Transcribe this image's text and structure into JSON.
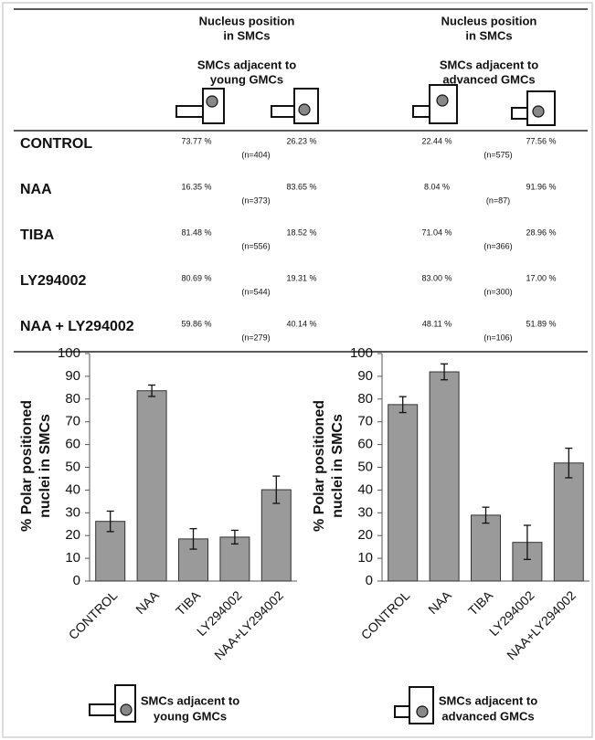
{
  "table": {
    "groups": [
      {
        "heading": [
          "Nucleus position",
          "in SMCs"
        ],
        "subheading": [
          "SMCs adjacent to",
          "young GMCs"
        ]
      },
      {
        "heading": [
          "Nucleus position",
          "in SMCs"
        ],
        "subheading": [
          "SMCs adjacent to",
          "advanced GMCs"
        ]
      }
    ],
    "rows": [
      {
        "label": "CONTROL",
        "cells": [
          "73.77 %",
          "(n=404)",
          "26.23 %",
          "22.44 %",
          "(n=575)",
          "77.56 %"
        ]
      },
      {
        "label": "NAA",
        "cells": [
          "16.35 %",
          "(n=373)",
          "83.65 %",
          "8.04 %",
          "(n=87)",
          "91.96 %"
        ]
      },
      {
        "label": "TIBA",
        "cells": [
          "81.48 %",
          "(n=556)",
          "18.52 %",
          "71.04 %",
          "(n=366)",
          "28.96 %"
        ]
      },
      {
        "label": "LY294002",
        "cells": [
          "80.69 %",
          "(n=544)",
          "19.31 %",
          "83.00 %",
          "(n=300)",
          "17.00 %"
        ]
      },
      {
        "label": "NAA + LY294002",
        "cells": [
          "59.86 %",
          "(n=279)",
          "40.14 %",
          "48.11 %",
          "(n=106)",
          "51.89 %"
        ]
      }
    ]
  },
  "chart_data": [
    {
      "type": "bar",
      "ylabel": [
        "% Polar positioned",
        "nuclei in SMCs"
      ],
      "categories": [
        "CONTROL",
        "NAA",
        "TIBA",
        "LY294002",
        "NAA+LY294002"
      ],
      "values": [
        26.23,
        83.65,
        18.52,
        19.31,
        40.14
      ],
      "errors": [
        4.5,
        2.5,
        4.5,
        3,
        6
      ],
      "color": "#9a9a9a",
      "ylim": [
        0,
        100
      ],
      "yticks": [
        0,
        10,
        20,
        30,
        40,
        50,
        60,
        70,
        80,
        90,
        100
      ],
      "legend": [
        "SMCs adjacent to",
        "young GMCs"
      ]
    },
    {
      "type": "bar",
      "ylabel": [
        "% Polar positioned",
        "nuclei in SMCs"
      ],
      "categories": [
        "CONTROL",
        "NAA",
        "TIBA",
        "LY294002",
        "NAA+LY294002"
      ],
      "values": [
        77.56,
        91.96,
        28.96,
        17.0,
        51.89
      ],
      "errors": [
        3.5,
        3.5,
        3.5,
        7.5,
        6.5
      ],
      "color": "#9a9a9a",
      "ylim": [
        0,
        100
      ],
      "yticks": [
        0,
        10,
        20,
        30,
        40,
        50,
        60,
        70,
        80,
        90,
        100
      ],
      "legend": [
        "SMCs adjacent to",
        "advanced GMCs"
      ]
    }
  ]
}
